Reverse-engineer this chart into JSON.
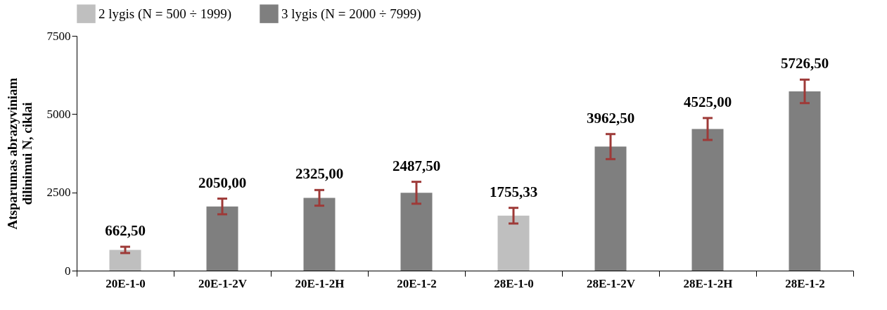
{
  "chart_data": {
    "type": "bar",
    "ylabel": "Atsparumas abrazyviniam\ndilinimui N, ciklai",
    "categories": [
      "20E-1-0",
      "20E-1-2V",
      "20E-1-2H",
      "20E-1-2",
      "28E-1-0",
      "28E-1-2V",
      "28E-1-2H",
      "28E-1-2"
    ],
    "series": [
      {
        "name": "2 lygis (N = 500 ÷ 1999)",
        "color": "#bfbfbf",
        "values": [
          662.5,
          null,
          null,
          null,
          1755.33,
          null,
          null,
          null
        ],
        "errors": [
          100,
          null,
          null,
          null,
          250,
          null,
          null,
          null
        ],
        "value_labels": [
          "662,50",
          null,
          null,
          null,
          "1755,33",
          null,
          null,
          null
        ]
      },
      {
        "name": "3 lygis (N = 2000 ÷ 7999)",
        "color": "#7f7f7f",
        "values": [
          null,
          2050,
          2325,
          2487.5,
          null,
          3962.5,
          4525,
          5726.5
        ],
        "errors": [
          null,
          250,
          250,
          350,
          null,
          400,
          350,
          375
        ],
        "value_labels": [
          null,
          "2050,00",
          "2325,00",
          "2487,50",
          null,
          "3962,50",
          "4525,00",
          "5726,50"
        ]
      }
    ],
    "ylim": [
      0,
      7500
    ],
    "yticks": [
      0,
      2500,
      5000,
      7500
    ],
    "legend": "top left"
  }
}
